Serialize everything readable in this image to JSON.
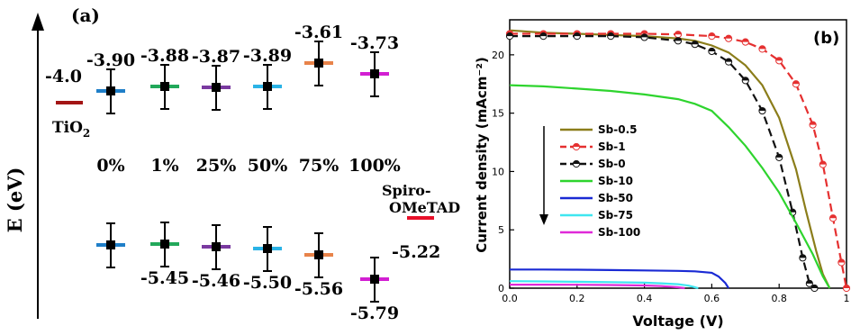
{
  "panel_a": {
    "label": "(a)",
    "axis_label": "E (eV)",
    "tio2": {
      "label_main": "TiO",
      "label_sub": "2",
      "value": "-4.0",
      "color": "#a31515"
    },
    "spiro": {
      "label_line1": "Spiro-",
      "label_line2": "OMeTAD",
      "value": "-5.22",
      "color": "#e8102a"
    },
    "samples": [
      {
        "name": "0%",
        "upper_value": "-3.90",
        "lower_value": "",
        "color": "#1f7fc8"
      },
      {
        "name": "1%",
        "upper_value": "-3.88",
        "lower_value": "-5.45",
        "color": "#22a85a"
      },
      {
        "name": "25%",
        "upper_value": "-3.87",
        "lower_value": "-5.46",
        "color": "#7a3aa0"
      },
      {
        "name": "50%",
        "upper_value": "-3.89",
        "lower_value": "-5.50",
        "color": "#2bb3e6"
      },
      {
        "name": "75%",
        "upper_value": "-3.61",
        "lower_value": "-5.56",
        "color": "#e8834a"
      },
      {
        "name": "100%",
        "upper_value": "-3.73",
        "lower_value": "-5.79",
        "color": "#d21fd2"
      }
    ]
  },
  "chart_data": {
    "type": "line",
    "panel_label": "(b)",
    "xlabel": "Voltage (V)",
    "ylabel": "Current density (mAcm⁻²)",
    "xlim": [
      0,
      1.0
    ],
    "ylim": [
      0,
      23
    ],
    "xticks": [
      "0.0",
      "0.2",
      "0.4",
      "0.6",
      "0.8",
      "1"
    ],
    "yticks": [
      "0",
      "5",
      "10",
      "15",
      "20"
    ],
    "legend_position": "center-left",
    "series": [
      {
        "name": "Sb-0.5",
        "color": "#8b7d1a",
        "style": "solid",
        "x": [
          0,
          0.1,
          0.2,
          0.3,
          0.4,
          0.5,
          0.55,
          0.6,
          0.65,
          0.7,
          0.75,
          0.8,
          0.85,
          0.88,
          0.91,
          0.93,
          0.95
        ],
        "y": [
          22.1,
          21.9,
          21.8,
          21.7,
          21.6,
          21.4,
          21.2,
          20.8,
          20.2,
          19.1,
          17.4,
          14.6,
          10.2,
          6.6,
          3.2,
          1.2,
          0
        ]
      },
      {
        "name": "Sb-1",
        "color": "#e53030",
        "style": "dashed",
        "marker": "circle",
        "x": [
          0,
          0.1,
          0.2,
          0.3,
          0.4,
          0.5,
          0.6,
          0.65,
          0.7,
          0.75,
          0.8,
          0.85,
          0.9,
          0.93,
          0.96,
          0.985,
          1.0
        ],
        "y": [
          21.8,
          21.8,
          21.8,
          21.8,
          21.8,
          21.75,
          21.6,
          21.4,
          21.1,
          20.5,
          19.5,
          17.5,
          14.0,
          10.6,
          6.0,
          2.2,
          0
        ]
      },
      {
        "name": "Sb-0",
        "color": "#111111",
        "style": "dashed",
        "marker": "circle",
        "x": [
          0,
          0.1,
          0.2,
          0.3,
          0.4,
          0.5,
          0.55,
          0.6,
          0.65,
          0.7,
          0.75,
          0.8,
          0.84,
          0.87,
          0.89,
          0.905
        ],
        "y": [
          21.6,
          21.6,
          21.6,
          21.6,
          21.5,
          21.2,
          20.9,
          20.3,
          19.4,
          17.8,
          15.2,
          11.2,
          6.5,
          2.6,
          0.4,
          0
        ]
      },
      {
        "name": "Sb-10",
        "color": "#2ed42e",
        "style": "solid",
        "x": [
          0,
          0.1,
          0.2,
          0.3,
          0.4,
          0.5,
          0.55,
          0.6,
          0.65,
          0.7,
          0.75,
          0.8,
          0.85,
          0.9,
          0.93,
          0.95
        ],
        "y": [
          17.4,
          17.3,
          17.1,
          16.9,
          16.6,
          16.2,
          15.8,
          15.2,
          13.8,
          12.2,
          10.3,
          8.2,
          5.6,
          2.9,
          1.0,
          0
        ]
      },
      {
        "name": "Sb-50",
        "color": "#1a2ad4",
        "style": "solid",
        "x": [
          0,
          0.1,
          0.2,
          0.3,
          0.4,
          0.5,
          0.55,
          0.6,
          0.62,
          0.64,
          0.65
        ],
        "y": [
          1.6,
          1.6,
          1.58,
          1.55,
          1.52,
          1.48,
          1.44,
          1.32,
          1.0,
          0.45,
          0
        ]
      },
      {
        "name": "Sb-75",
        "color": "#3fe6f0",
        "style": "solid",
        "x": [
          0,
          0.1,
          0.2,
          0.3,
          0.4,
          0.45,
          0.5,
          0.53,
          0.55,
          0.56
        ],
        "y": [
          0.6,
          0.58,
          0.55,
          0.52,
          0.47,
          0.42,
          0.34,
          0.22,
          0.08,
          0
        ]
      },
      {
        "name": "Sb-100",
        "color": "#e02ad8",
        "style": "solid",
        "x": [
          0,
          0.1,
          0.2,
          0.3,
          0.4,
          0.45,
          0.5,
          0.52
        ],
        "y": [
          0.3,
          0.3,
          0.29,
          0.27,
          0.23,
          0.18,
          0.08,
          0
        ]
      }
    ]
  }
}
